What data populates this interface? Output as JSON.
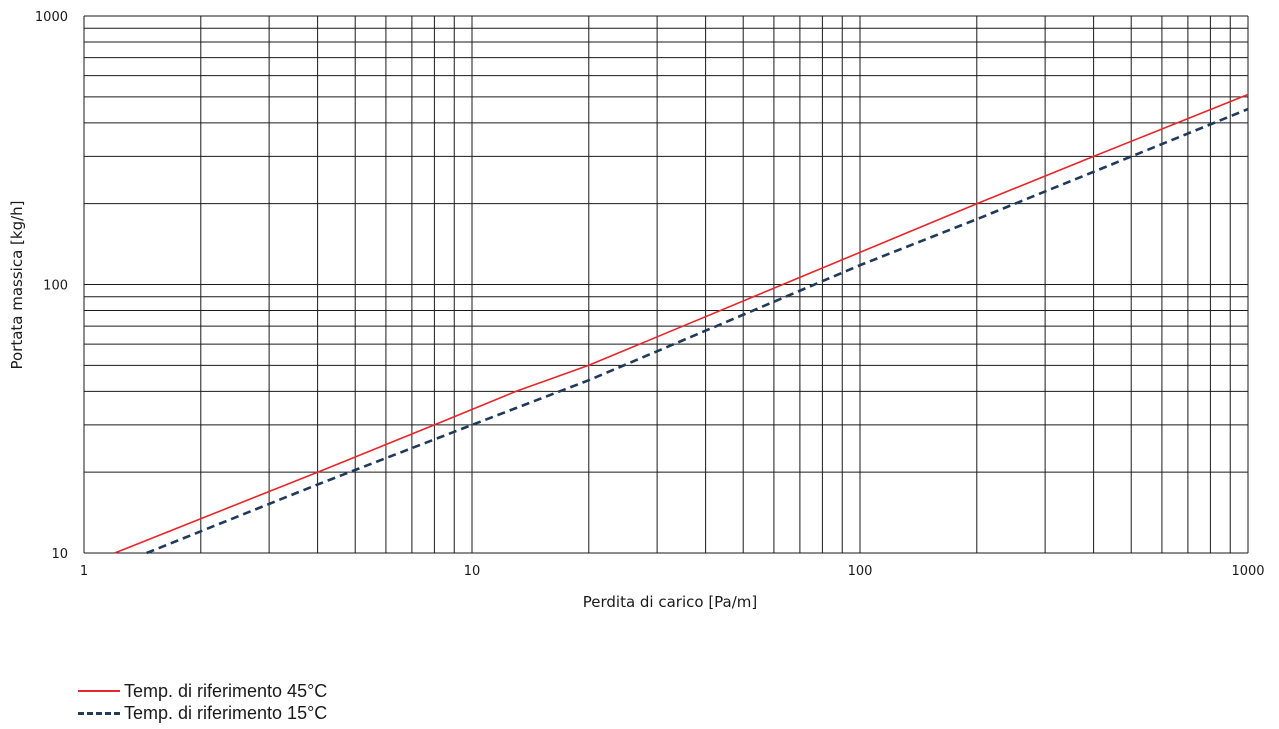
{
  "chart_data": {
    "type": "line",
    "title": "",
    "xlabel": "Perdita di carico [Pa/m]",
    "ylabel": "Portata massica [kg/h]",
    "x_scale": "log",
    "y_scale": "log",
    "xlim": [
      1,
      1000
    ],
    "ylim": [
      10,
      1000
    ],
    "x_ticks": [
      "1",
      "10",
      "100",
      "1000"
    ],
    "y_ticks": [
      "10",
      "100",
      "1000"
    ],
    "grid": true,
    "legend_position": "bottom-left",
    "series": [
      {
        "name": "Temp. di riferimento 45°C",
        "color": "#e8262a",
        "style": "solid",
        "points": [
          [
            1.2,
            10
          ],
          [
            4,
            20
          ],
          [
            8,
            30
          ],
          [
            13,
            40
          ],
          [
            20,
            50
          ],
          [
            200,
            200
          ],
          [
            400,
            300
          ],
          [
            1000,
            510
          ]
        ]
      },
      {
        "name": "Temp. di riferimento 15°C",
        "color": "#1f3a5a",
        "style": "dashed",
        "points": [
          [
            1.45,
            10
          ],
          [
            4,
            18
          ],
          [
            10,
            30
          ],
          [
            20,
            44
          ],
          [
            100,
            118
          ],
          [
            200,
            175
          ],
          [
            1000,
            450
          ]
        ]
      }
    ]
  }
}
